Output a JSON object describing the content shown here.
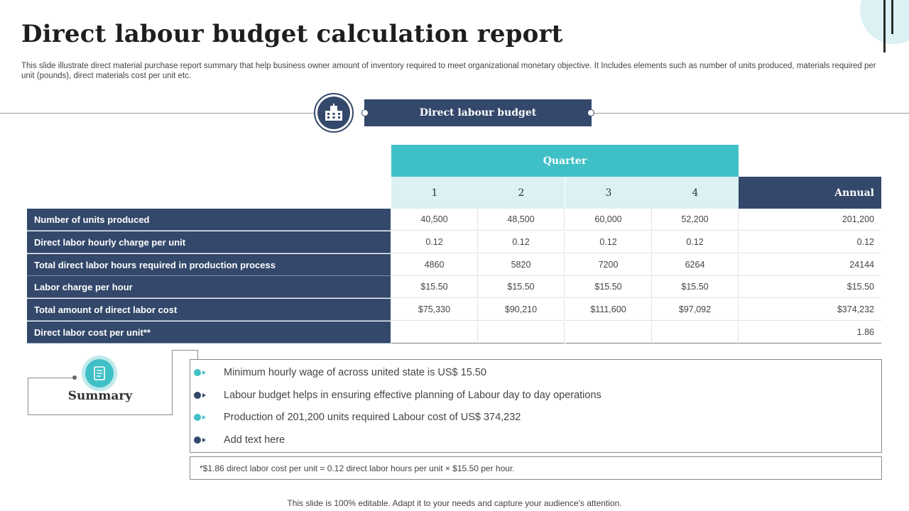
{
  "title": "Direct labour budget calculation report",
  "subtitle": "This slide illustrate direct material purchase report summary that help business owner amount of inventory required to meet organizational monetary objective. It Includes elements such as number of units produced, materials required per unit (pounds), direct materials cost per unit etc.",
  "section_title": "Direct labour budget",
  "table": {
    "group_header": "Quarter",
    "quarters": [
      "1",
      "2",
      "3",
      "4"
    ],
    "annual_header": "Annual",
    "rows": [
      {
        "label": "Number of units  produced",
        "values": [
          "40,500",
          "48,500",
          "60,000",
          "52,200"
        ],
        "annual": "201,200"
      },
      {
        "label": "Direct labor hourly charge per unit",
        "values": [
          "0.12",
          "0.12",
          "0.12",
          "0.12"
        ],
        "annual": "0.12"
      },
      {
        "label": "Total direct labor hours  required in production  process",
        "values": [
          "4860",
          "5820",
          "7200",
          "6264"
        ],
        "annual": "24144"
      },
      {
        "label": "Labor charge per hour",
        "values": [
          "$15.50",
          "$15.50",
          "$15.50",
          "$15.50"
        ],
        "annual": "$15.50"
      },
      {
        "label": "Total amount of direct labor cost",
        "values": [
          "$75,330",
          "$90,210",
          "$111,600",
          "$97,092"
        ],
        "annual": "$374,232"
      },
      {
        "label": "Direct labor cost  per unit**",
        "values": [
          "",
          "",
          "",
          ""
        ],
        "annual": "1.86"
      }
    ]
  },
  "summary": {
    "title": "Summary",
    "bullets": [
      "Minimum hourly wage of across united state is US$ 15.50",
      "Labour budget helps in ensuring effective planning of Labour day to day operations",
      "Production of 201,200 units required Labour cost of US$ 374,232",
      "Add text here"
    ]
  },
  "note": "*$1.86 direct labor cost per unit = 0.12 direct labor hours  per unit × $15.50  per hour.",
  "footer": "This slide is 100% editable. Adapt it to your needs and capture your audience's attention.",
  "colors": {
    "navy": "#33486a",
    "teal": "#3fc0c6",
    "light_teal": "#dcf1f3"
  }
}
